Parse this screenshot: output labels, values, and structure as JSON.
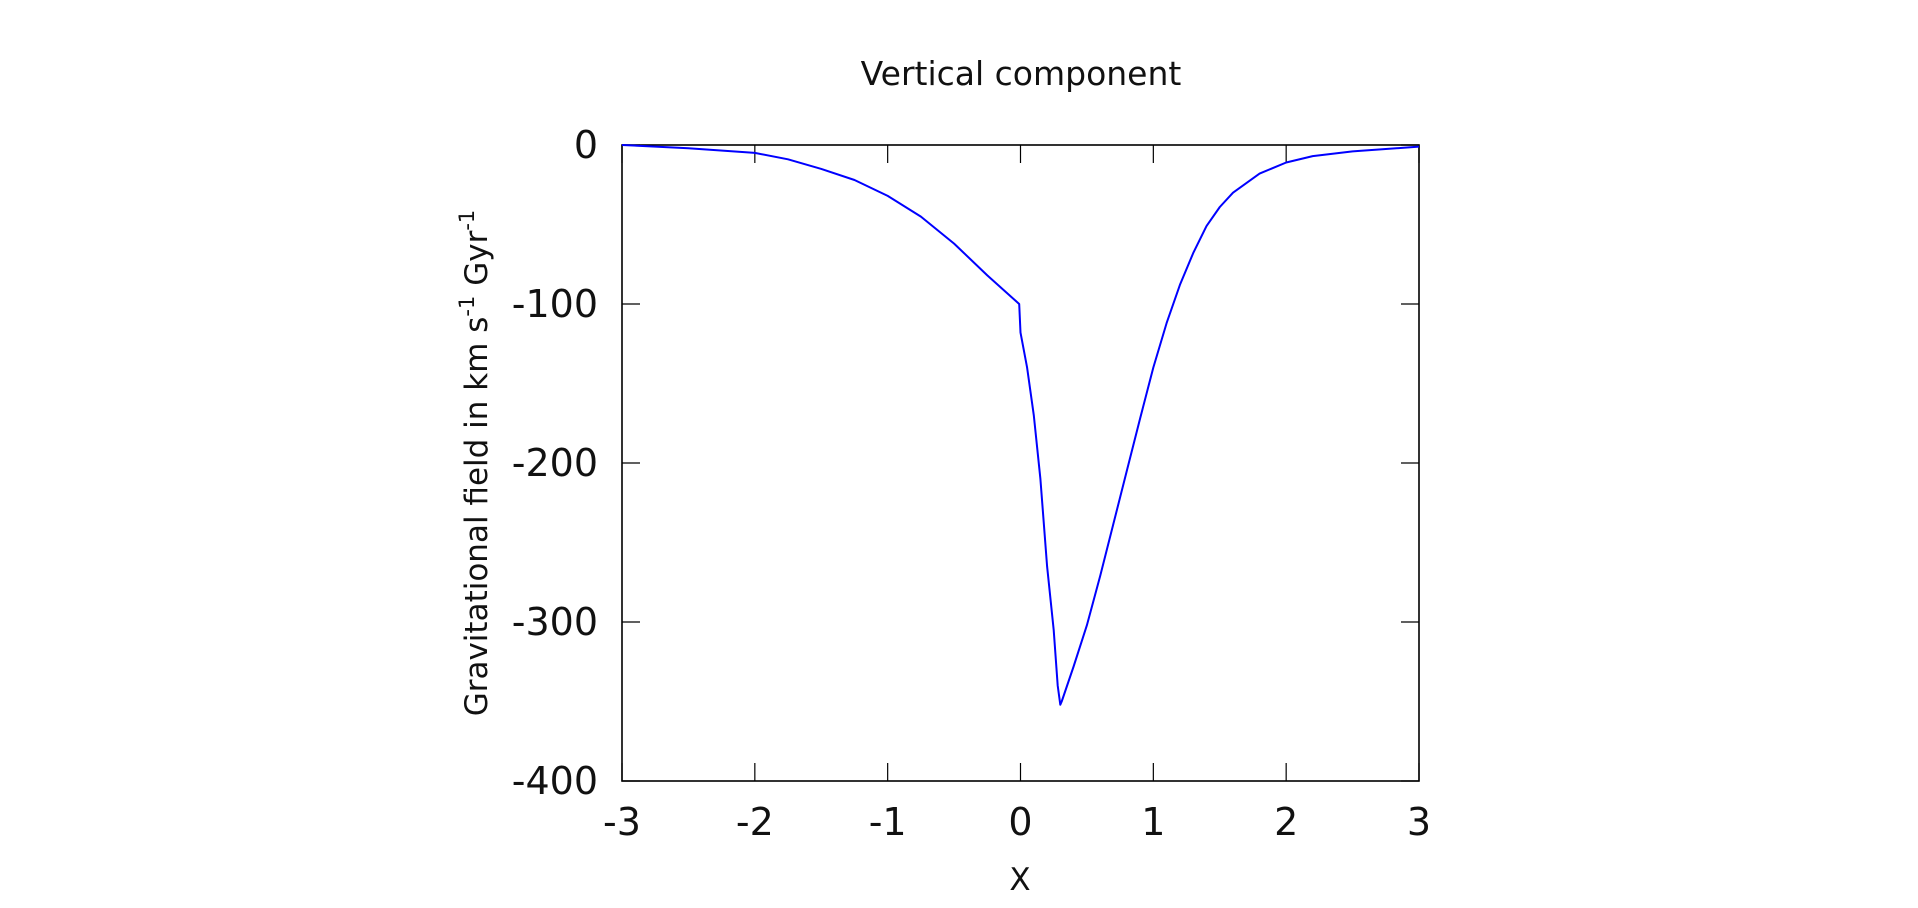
{
  "chart_data": {
    "type": "line",
    "title": "Vertical component",
    "xlabel": "X",
    "ylabel": {
      "parts": [
        {
          "text": "Gravitational field in km s",
          "sup": false
        },
        {
          "text": "-1",
          "sup": true
        },
        {
          "text": " Gyr",
          "sup": false
        },
        {
          "text": "-1",
          "sup": true
        }
      ]
    },
    "xlim": [
      -3,
      3
    ],
    "ylim": [
      -400,
      0
    ],
    "xticks": [
      -3,
      -2,
      -1,
      0,
      1,
      2,
      3
    ],
    "xtick_labels": [
      "-3",
      "-2",
      "-1",
      "0",
      "1",
      "2",
      "3"
    ],
    "yticks": [
      0,
      -100,
      -200,
      -300,
      -400
    ],
    "ytick_labels": [
      "0",
      "-100",
      "-200",
      "-300",
      "-400"
    ],
    "grid": false,
    "legend": "none",
    "series": [
      {
        "color": "#0000ff",
        "x": [
          -3.0,
          -2.5,
          -2.0,
          -1.75,
          -1.5,
          -1.25,
          -1.0,
          -0.75,
          -0.5,
          -0.25,
          -0.05,
          -0.01,
          0.0,
          0.05,
          0.1,
          0.15,
          0.2,
          0.25,
          0.28,
          0.3,
          0.31,
          0.4,
          0.5,
          0.6,
          0.7,
          0.8,
          0.9,
          1.0,
          1.1,
          1.2,
          1.3,
          1.4,
          1.5,
          1.6,
          1.8,
          2.0,
          2.2,
          2.5,
          2.75,
          3.0
        ],
        "y": [
          0,
          -2,
          -5,
          -9,
          -15,
          -22,
          -32,
          -45,
          -62,
          -82,
          -97,
          -100,
          -118,
          -140,
          -170,
          -210,
          -265,
          -305,
          -340,
          -352,
          -350,
          -328,
          -302,
          -271,
          -238,
          -205,
          -172,
          -140,
          -112,
          -88,
          -68,
          -51,
          -39,
          -30,
          -18,
          -11,
          -7,
          -4,
          -2.5,
          -1
        ]
      }
    ]
  }
}
